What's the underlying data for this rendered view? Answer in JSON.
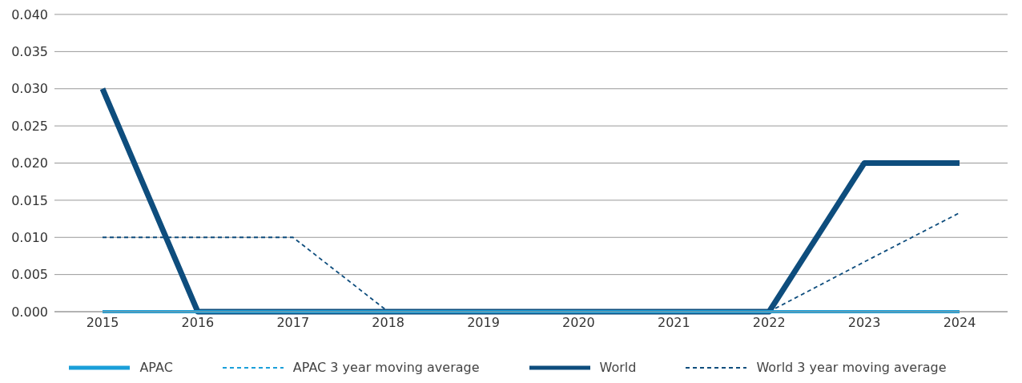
{
  "chart_data": {
    "type": "line",
    "categories": [
      "2015",
      "2016",
      "2017",
      "2018",
      "2019",
      "2020",
      "2021",
      "2022",
      "2023",
      "2024"
    ],
    "series": [
      {
        "name": "APAC",
        "color": "#1a9fd9",
        "values": [
          0,
          0,
          0,
          0,
          0,
          0,
          0,
          0,
          0,
          0
        ],
        "line_style": "solid"
      },
      {
        "name": "APAC 3 year moving average",
        "color": "#1a9fd9",
        "values": [
          null,
          null,
          null,
          null,
          null,
          null,
          null,
          null,
          null,
          null
        ],
        "line_style": "dashed"
      },
      {
        "name": "World",
        "color": "#0e4d7d",
        "values": [
          0.03,
          0,
          0,
          0,
          0,
          0,
          0,
          0,
          0.02,
          0.02
        ],
        "line_style": "solid"
      },
      {
        "name": "World 3 year moving average",
        "color": "#0e4d7d",
        "values": [
          0.01,
          0.01,
          0.01,
          0,
          0,
          0,
          0,
          0,
          0.0067,
          0.0133
        ],
        "line_style": "dashed"
      }
    ],
    "ylim": [
      0,
      0.04
    ],
    "yticks": [
      {
        "value": 0,
        "label": "0.000"
      },
      {
        "value": 0.005,
        "label": "0.005"
      },
      {
        "value": 0.01,
        "label": "0.010"
      },
      {
        "value": 0.015,
        "label": "0.015"
      },
      {
        "value": 0.02,
        "label": "0.020"
      },
      {
        "value": 0.025,
        "label": "0.025"
      },
      {
        "value": 0.03,
        "label": "0.030"
      },
      {
        "value": 0.035,
        "label": "0.035"
      },
      {
        "value": 0.04,
        "label": "0.040"
      }
    ],
    "grid": "y",
    "legend": "bottom",
    "marker": "none"
  }
}
